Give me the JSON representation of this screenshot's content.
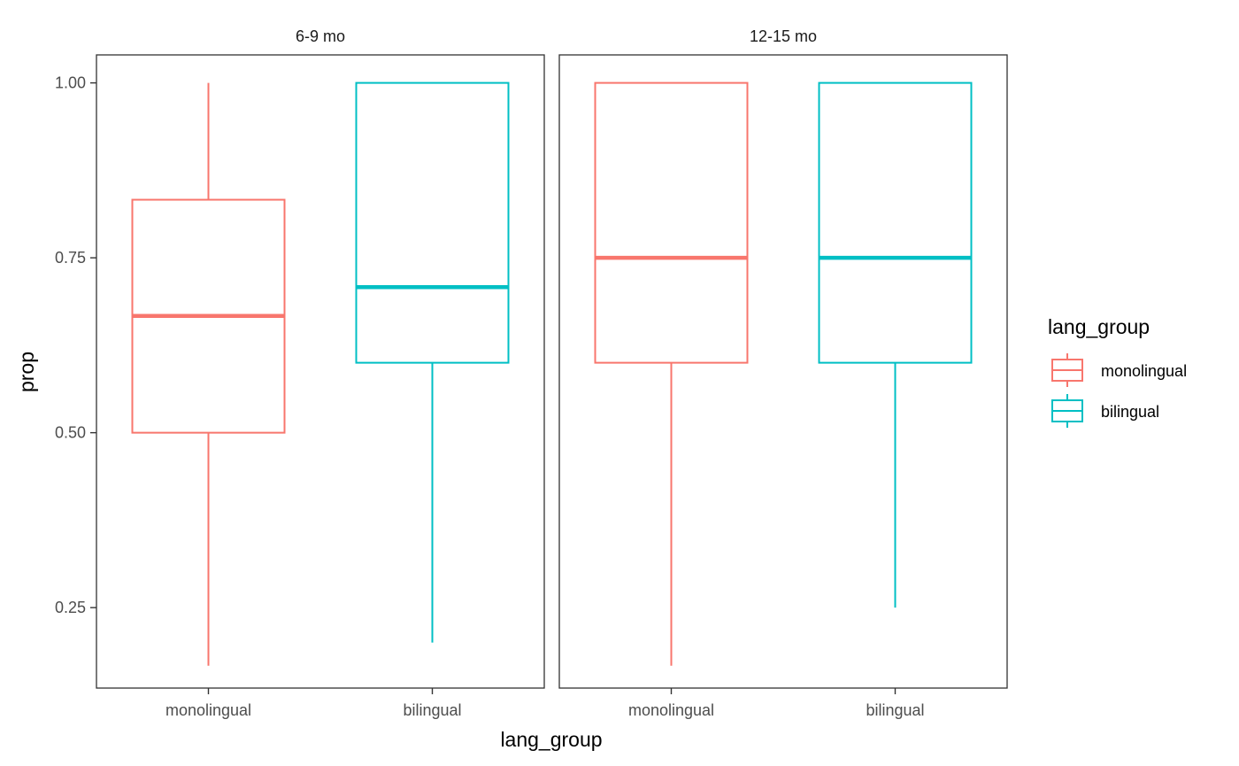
{
  "chart_data": {
    "type": "boxplot",
    "xlabel": "lang_group",
    "ylabel": "prop",
    "ylim": [
      0.135,
      1.04
    ],
    "yticks": [
      0.25,
      0.5,
      0.75,
      1.0
    ],
    "ytick_labels": [
      "0.25",
      "0.50",
      "0.75",
      "1.00"
    ],
    "categories": [
      "monolingual",
      "bilingual"
    ],
    "colors": {
      "monolingual": "#F8766D",
      "bilingual": "#00BFC4"
    },
    "grid": false,
    "legend": {
      "title": "lang_group",
      "placement": "right",
      "entries": [
        "monolingual",
        "bilingual"
      ]
    },
    "panels": [
      {
        "label": "6-9 mo",
        "boxes": [
          {
            "group": "monolingual",
            "min": 0.167,
            "q1": 0.5,
            "median": 0.667,
            "q3": 0.833,
            "max": 1.0
          },
          {
            "group": "bilingual",
            "min": 0.2,
            "q1": 0.6,
            "median": 0.708,
            "q3": 1.0,
            "max": 1.0
          }
        ]
      },
      {
        "label": "12-15 mo",
        "boxes": [
          {
            "group": "monolingual",
            "min": 0.167,
            "q1": 0.6,
            "median": 0.75,
            "q3": 1.0,
            "max": 1.0
          },
          {
            "group": "bilingual",
            "min": 0.25,
            "q1": 0.6,
            "median": 0.75,
            "q3": 1.0,
            "max": 1.0
          }
        ]
      }
    ]
  }
}
